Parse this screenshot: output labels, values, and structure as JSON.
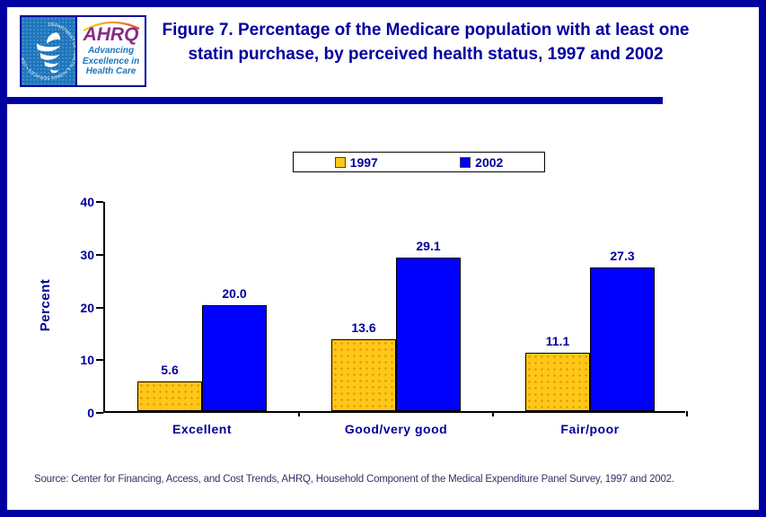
{
  "page": {
    "border_color": "#0000A0",
    "background": "#FFFFFF"
  },
  "header": {
    "logo": {
      "hhs_seal_text": "DEPARTMENT OF HEALTH & HUMAN SERVICES • USA",
      "ahrq_acronym": "AHRQ",
      "ahrq_tagline": "Advancing Excellence in Health Care"
    },
    "title": "Figure 7. Percentage of the Medicare population with at least one statin purchase, by perceived health status, 1997 and 2002"
  },
  "chart_data": {
    "type": "bar",
    "title": "Figure 7. Percentage of the Medicare population with at least one statin purchase, by perceived health status, 1997 and 2002",
    "categories": [
      "Excellent",
      "Good/very good",
      "Fair/poor"
    ],
    "series": [
      {
        "name": "1997",
        "color": "#FFC718",
        "texture": "dotted",
        "values": [
          5.6,
          13.6,
          11.1
        ]
      },
      {
        "name": "2002",
        "color": "#0000FF",
        "texture": "solid",
        "values": [
          20.0,
          29.1,
          27.3
        ]
      }
    ],
    "xlabel": "",
    "ylabel": "Percent",
    "ylim": [
      0,
      40
    ],
    "yticks": [
      0,
      10,
      20,
      30,
      40
    ],
    "grid": false,
    "legend_position": "top-center",
    "value_label_decimals": 1
  },
  "footer": {
    "source": "Source: Center for Financing, Access, and Cost Trends, AHRQ, Household Component of the Medical Expenditure Panel Survey, 1997 and 2002."
  }
}
